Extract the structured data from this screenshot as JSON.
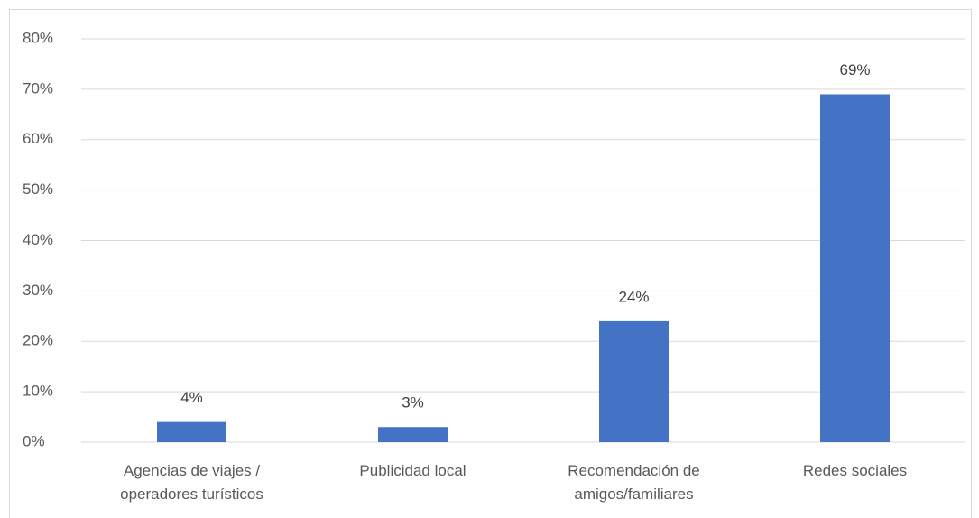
{
  "chart_data": {
    "type": "bar",
    "categories": [
      "Agencias de viajes / operadores turísticos",
      "Publicidad local",
      "Recomendación de amigos/familiares",
      "Redes sociales"
    ],
    "values": [
      4,
      3,
      24,
      69
    ],
    "value_labels": [
      "4%",
      "3%",
      "24%",
      "69%"
    ],
    "color": "#4472c4",
    "ylim": [
      0,
      80
    ],
    "yticks": [
      {
        "value": 0,
        "label": "0%"
      },
      {
        "value": 10,
        "label": "10%"
      },
      {
        "value": 20,
        "label": "20%"
      },
      {
        "value": 30,
        "label": "30%"
      },
      {
        "value": 40,
        "label": "40%"
      },
      {
        "value": 50,
        "label": "50%"
      },
      {
        "value": 60,
        "label": "60%"
      },
      {
        "value": 70,
        "label": "70%"
      },
      {
        "value": 80,
        "label": "80%"
      }
    ],
    "grid": true
  }
}
